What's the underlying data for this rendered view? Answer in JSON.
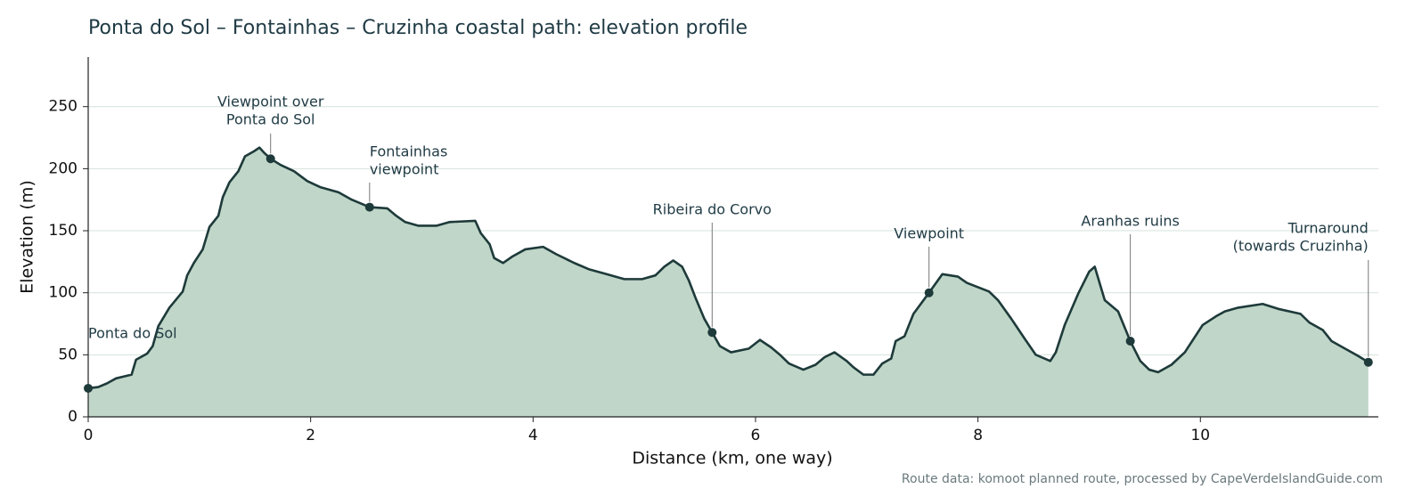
{
  "chart_data": {
    "type": "area",
    "title": "Ponta do Sol – Fontainhas – Cruzinha coastal path: elevation profile",
    "xlabel": "Distance (km, one way)",
    "ylabel": "Elevation (m)",
    "source": "Route data: komoot planned route, processed by CapeVerdeIslandGuide.com",
    "line_color": "#1e3a3a",
    "fill_color": "#c0d6c8",
    "grid": true,
    "xlim": [
      0,
      11.6
    ],
    "ylim": [
      0,
      290
    ],
    "xticks": [
      0,
      2,
      4,
      6,
      8,
      10
    ],
    "yticks": [
      0,
      50,
      100,
      150,
      200,
      250
    ],
    "x": [
      0,
      0.09,
      0.17,
      0.25,
      0.39,
      0.43,
      0.53,
      0.58,
      0.63,
      0.73,
      0.85,
      0.89,
      0.95,
      1.03,
      1.09,
      1.17,
      1.21,
      1.27,
      1.35,
      1.41,
      1.49,
      1.54,
      1.58,
      1.64,
      1.73,
      1.85,
      1.97,
      2.09,
      2.25,
      2.37,
      2.53,
      2.69,
      2.77,
      2.85,
      2.97,
      3.13,
      3.25,
      3.48,
      3.53,
      3.61,
      3.65,
      3.73,
      3.81,
      3.93,
      4.09,
      4.21,
      4.37,
      4.5,
      4.66,
      4.82,
      4.98,
      5.1,
      5.18,
      5.26,
      5.34,
      5.4,
      5.46,
      5.54,
      5.61,
      5.68,
      5.78,
      5.94,
      6.04,
      6.14,
      6.22,
      6.3,
      6.43,
      6.54,
      6.62,
      6.71,
      6.82,
      6.88,
      6.97,
      7.06,
      7.14,
      7.22,
      7.26,
      7.34,
      7.42,
      7.56,
      7.68,
      7.82,
      7.9,
      8.1,
      8.18,
      8.3,
      8.42,
      8.52,
      8.65,
      8.7,
      8.78,
      8.9,
      9.0,
      9.05,
      9.14,
      9.26,
      9.37,
      9.46,
      9.54,
      9.62,
      9.74,
      9.86,
      10.02,
      10.14,
      10.22,
      10.34,
      10.56,
      10.7,
      10.9,
      10.98,
      11.1,
      11.18,
      11.3,
      11.42,
      11.51
    ],
    "values": [
      23,
      24,
      27,
      31,
      34,
      46,
      51,
      57,
      73,
      88,
      101,
      114,
      124,
      135,
      153,
      162,
      177,
      189,
      198,
      210,
      214,
      217,
      213,
      208,
      203,
      198,
      190,
      185,
      181,
      175,
      169,
      168,
      162,
      157,
      154,
      154,
      157,
      158,
      148,
      139,
      128,
      124,
      129,
      135,
      137,
      131,
      124,
      119,
      115,
      111,
      111,
      114,
      121,
      126,
      121,
      110,
      96,
      79,
      68,
      57,
      52,
      55,
      62,
      56,
      50,
      43,
      38,
      42,
      48,
      52,
      45,
      40,
      34,
      34,
      43,
      47,
      61,
      65,
      83,
      100,
      115,
      113,
      108,
      101,
      94,
      79,
      63,
      50,
      45,
      52,
      74,
      99,
      117,
      121,
      94,
      85,
      61,
      45,
      38,
      36,
      42,
      52,
      74,
      81,
      85,
      88,
      91,
      87,
      83,
      76,
      70,
      61,
      55,
      49,
      44
    ],
    "annotations": [
      {
        "label": [
          "Ponta do Sol"
        ],
        "x": 0,
        "y": 23
      },
      {
        "label": [
          "Viewpoint over",
          "Ponta do Sol"
        ],
        "x": 1.64,
        "y": 208
      },
      {
        "label": [
          "Fontainhas",
          "viewpoint"
        ],
        "x": 2.53,
        "y": 169
      },
      {
        "label": [
          "Ribeira do Corvo"
        ],
        "x": 5.61,
        "y": 68
      },
      {
        "label": [
          "Viewpoint"
        ],
        "x": 7.56,
        "y": 100
      },
      {
        "label": [
          "Aranhas ruins"
        ],
        "x": 9.37,
        "y": 61
      },
      {
        "label": [
          "Turnaround",
          "(towards Cruzinha)"
        ],
        "x": 11.51,
        "y": 44
      }
    ]
  }
}
